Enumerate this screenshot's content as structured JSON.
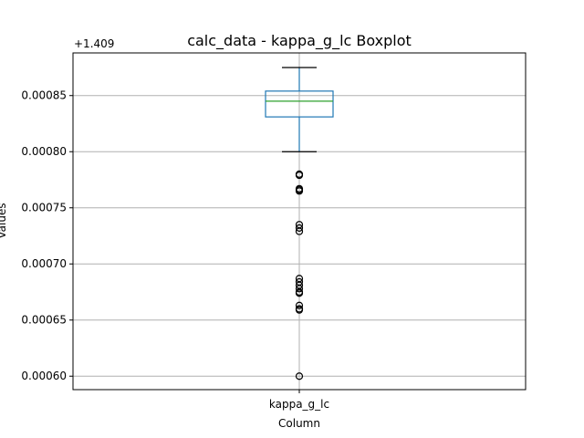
{
  "chart_data": {
    "type": "box",
    "title": "calc_data - kappa_g_lc Boxplot",
    "xlabel": "Column",
    "ylabel": "Values",
    "offset_label": "+1.409",
    "categories": [
      "kappa_g_lc"
    ],
    "ylim": [
      0.000588,
      0.000888
    ],
    "yticks": [
      0.0006,
      0.00065,
      0.0007,
      0.00075,
      0.0008,
      0.00085
    ],
    "ytick_labels": [
      "0.00060",
      "0.00065",
      "0.00070",
      "0.00075",
      "0.00080",
      "0.00085"
    ],
    "grid": true,
    "box": {
      "whisker_low": 0.0008,
      "q1": 0.000831,
      "median": 0.000845,
      "q3": 0.000854,
      "whisker_high": 0.000875
    },
    "outliers": [
      0.00078,
      0.000779,
      0.000767,
      0.000766,
      0.000765,
      0.000735,
      0.000732,
      0.000729,
      0.000687,
      0.000684,
      0.000681,
      0.000678,
      0.000675,
      0.000674,
      0.000663,
      0.00066,
      0.000659,
      0.0006
    ],
    "colors": {
      "box": "#1f77b4",
      "median": "#2ca02c",
      "whisker_cap": "#000000",
      "outlier": "#000000",
      "grid": "#b0b0b0"
    }
  }
}
